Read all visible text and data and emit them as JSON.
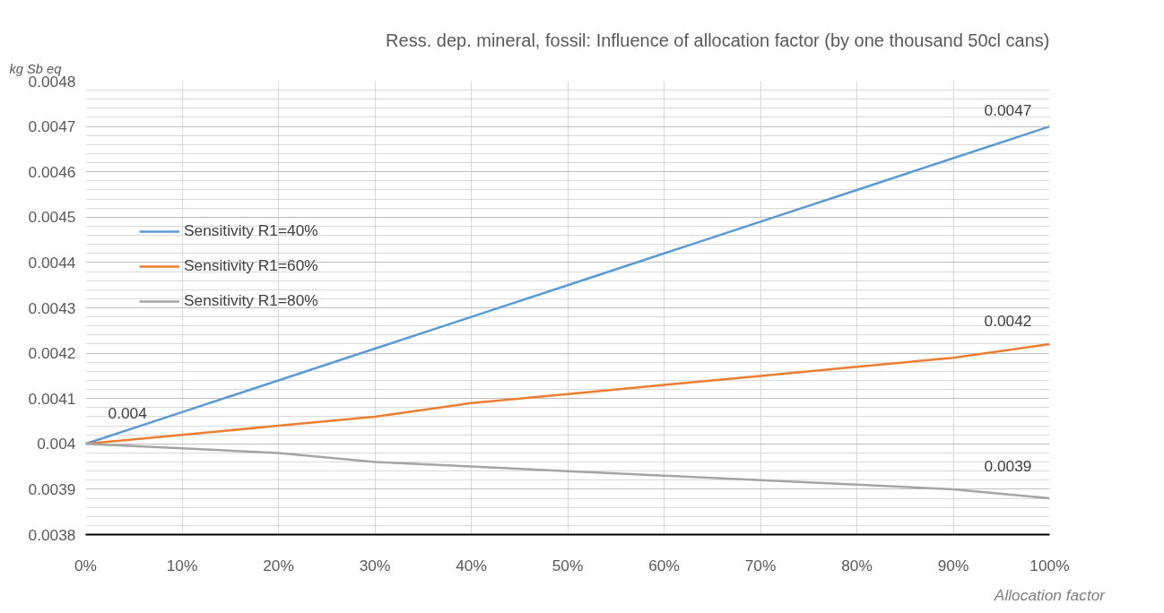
{
  "chart_data": {
    "type": "line",
    "title": "Ress. dep. mineral, fossil: Influence of allocation factor (by one thousand 50cl cans)",
    "xlabel": "Allocation factor",
    "ylabel": "kg Sb eq",
    "x": [
      0,
      10,
      20,
      30,
      40,
      50,
      60,
      70,
      80,
      90,
      100
    ],
    "series": [
      {
        "name": "Sensitivity R1=40%",
        "color": "#5b9bd5",
        "values": [
          0.004,
          0.00407,
          0.00414,
          0.00421,
          0.00428,
          0.00435,
          0.00442,
          0.00449,
          0.00456,
          0.00463,
          0.0047
        ],
        "value_labels": [
          "0.004",
          null,
          null,
          null,
          null,
          null,
          null,
          null,
          null,
          null,
          "0.0047"
        ]
      },
      {
        "name": "Sensitivity R1=60%",
        "color": "#ed7d31",
        "values": [
          0.004,
          0.00402,
          0.00404,
          0.00406,
          0.00409,
          0.00411,
          0.00413,
          0.00415,
          0.00417,
          0.00419,
          0.00422
        ],
        "value_labels": [
          null,
          null,
          null,
          null,
          null,
          null,
          null,
          null,
          null,
          null,
          "0.0042"
        ]
      },
      {
        "name": "Sensitivity R1=80%",
        "color": "#a5a5a5",
        "values": [
          0.004,
          0.00399,
          0.00398,
          0.00396,
          0.00395,
          0.00394,
          0.00393,
          0.00392,
          0.00391,
          0.0039,
          0.00388
        ],
        "value_labels": [
          null,
          null,
          null,
          null,
          null,
          null,
          null,
          null,
          null,
          null,
          "0.0039"
        ]
      }
    ],
    "xlim": [
      0,
      100
    ],
    "xticks": [
      {
        "value": 0,
        "label": "0%"
      },
      {
        "value": 10,
        "label": "10%"
      },
      {
        "value": 20,
        "label": "20%"
      },
      {
        "value": 30,
        "label": "30%"
      },
      {
        "value": 40,
        "label": "40%"
      },
      {
        "value": 50,
        "label": "50%"
      },
      {
        "value": 60,
        "label": "60%"
      },
      {
        "value": 70,
        "label": "70%"
      },
      {
        "value": 80,
        "label": "80%"
      },
      {
        "value": 90,
        "label": "90%"
      },
      {
        "value": 100,
        "label": "100%"
      }
    ],
    "ylim": [
      0.0038,
      0.0048
    ],
    "yticks": [
      {
        "value": 0.0038,
        "label": "0.0038"
      },
      {
        "value": 0.0039,
        "label": "0.0039"
      },
      {
        "value": 0.004,
        "label": "0.004"
      },
      {
        "value": 0.0041,
        "label": "0.0041"
      },
      {
        "value": 0.0042,
        "label": "0.0042"
      },
      {
        "value": 0.0043,
        "label": "0.0043"
      },
      {
        "value": 0.0044,
        "label": "0.0044"
      },
      {
        "value": 0.0045,
        "label": "0.0045"
      },
      {
        "value": 0.0046,
        "label": "0.0046"
      },
      {
        "value": 0.0047,
        "label": "0.0047"
      },
      {
        "value": 0.0048,
        "label": "0.0048"
      }
    ],
    "grid": true,
    "legend": "left",
    "marker": "none",
    "line_style": "solid"
  }
}
